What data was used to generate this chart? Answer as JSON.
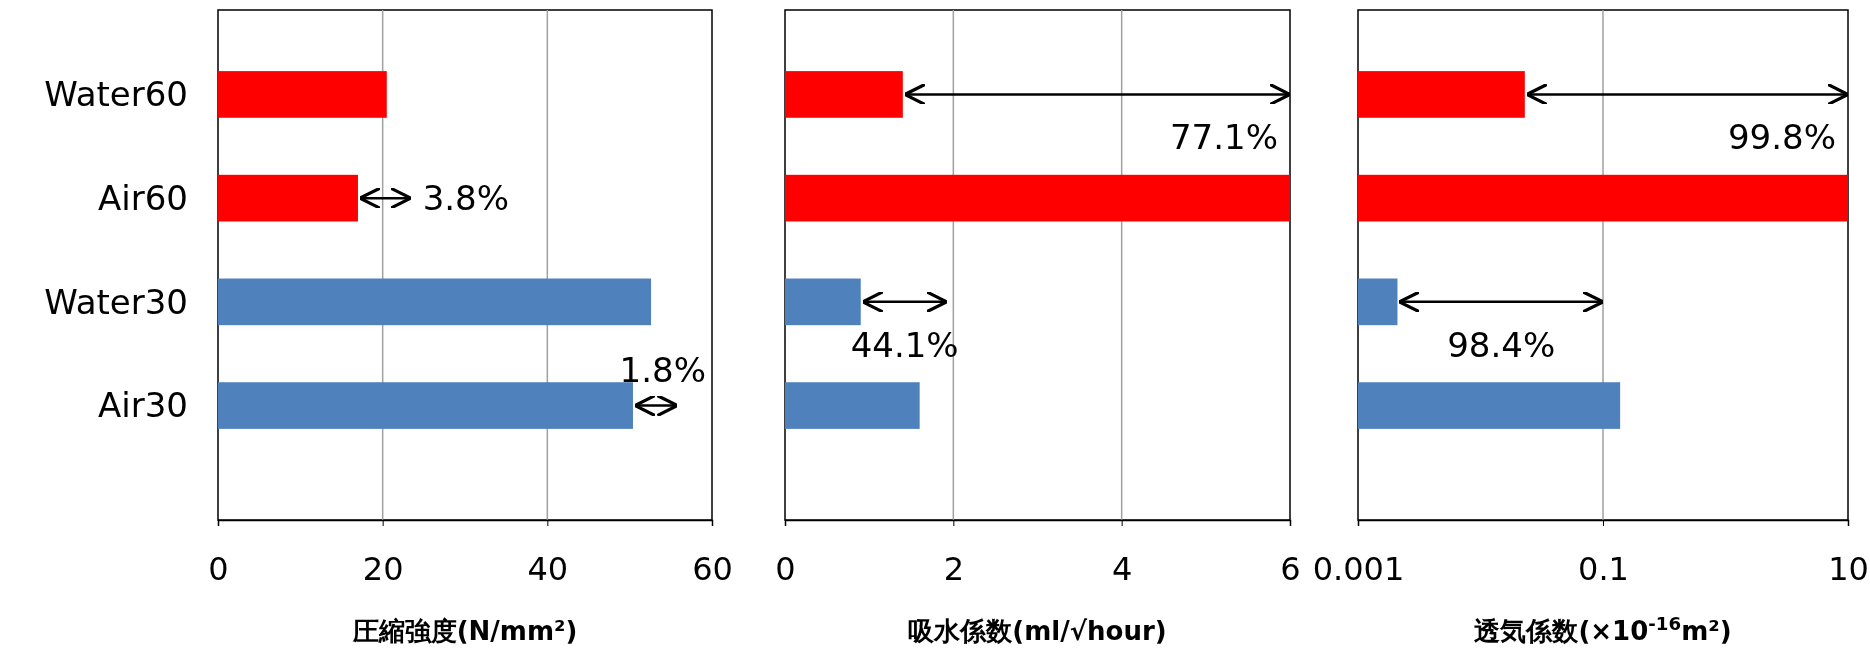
{
  "chart_data": [
    {
      "type": "bar",
      "orientation": "horizontal",
      "categories": [
        "Water60",
        "Air60",
        "Water30",
        "Air30"
      ],
      "values": [
        20.5,
        17,
        52.6,
        50.4
      ],
      "colors": [
        "#ff0000",
        "#ff0000",
        "#4f81bd",
        "#4f81bd"
      ],
      "xlim": [
        0,
        60
      ],
      "xticks": [
        0,
        20,
        40,
        60
      ],
      "grid": "x",
      "xlabel": "圧縮強度(N/mm²)",
      "annotations": [
        "3.8%",
        "1.8%"
      ]
    },
    {
      "type": "bar",
      "orientation": "horizontal",
      "categories": [
        null,
        null,
        null,
        null
      ],
      "values": [
        1.4,
        6.0,
        0.9,
        1.6
      ],
      "colors": [
        "#ff0000",
        "#ff0000",
        "#4f81bd",
        "#4f81bd"
      ],
      "xlim": [
        0,
        6
      ],
      "xticks": [
        0,
        2,
        4,
        6
      ],
      "grid": "x",
      "tick_labels": "x",
      "xlabel": "吸水係数(ml/√hour)",
      "annotations": [
        "77.1%",
        "44.1%"
      ]
    },
    {
      "type": "bar",
      "orientation": "horizontal",
      "categories": [
        null,
        null,
        null,
        null
      ],
      "values": [
        0.023,
        10,
        0.0021,
        0.138
      ],
      "colors": [
        "#ff0000",
        "#ff0000",
        "#4f81bd",
        "#4f81bd"
      ],
      "xlim": [
        0.001,
        10
      ],
      "xticks": [
        0.001,
        0.1,
        10
      ],
      "log": "x",
      "grid": "x",
      "tick_labels": "x",
      "xlabel": "透気係数(×10$^{-16}$m²)",
      "annotations": [
        "99.8%",
        "98.4%"
      ]
    }
  ]
}
